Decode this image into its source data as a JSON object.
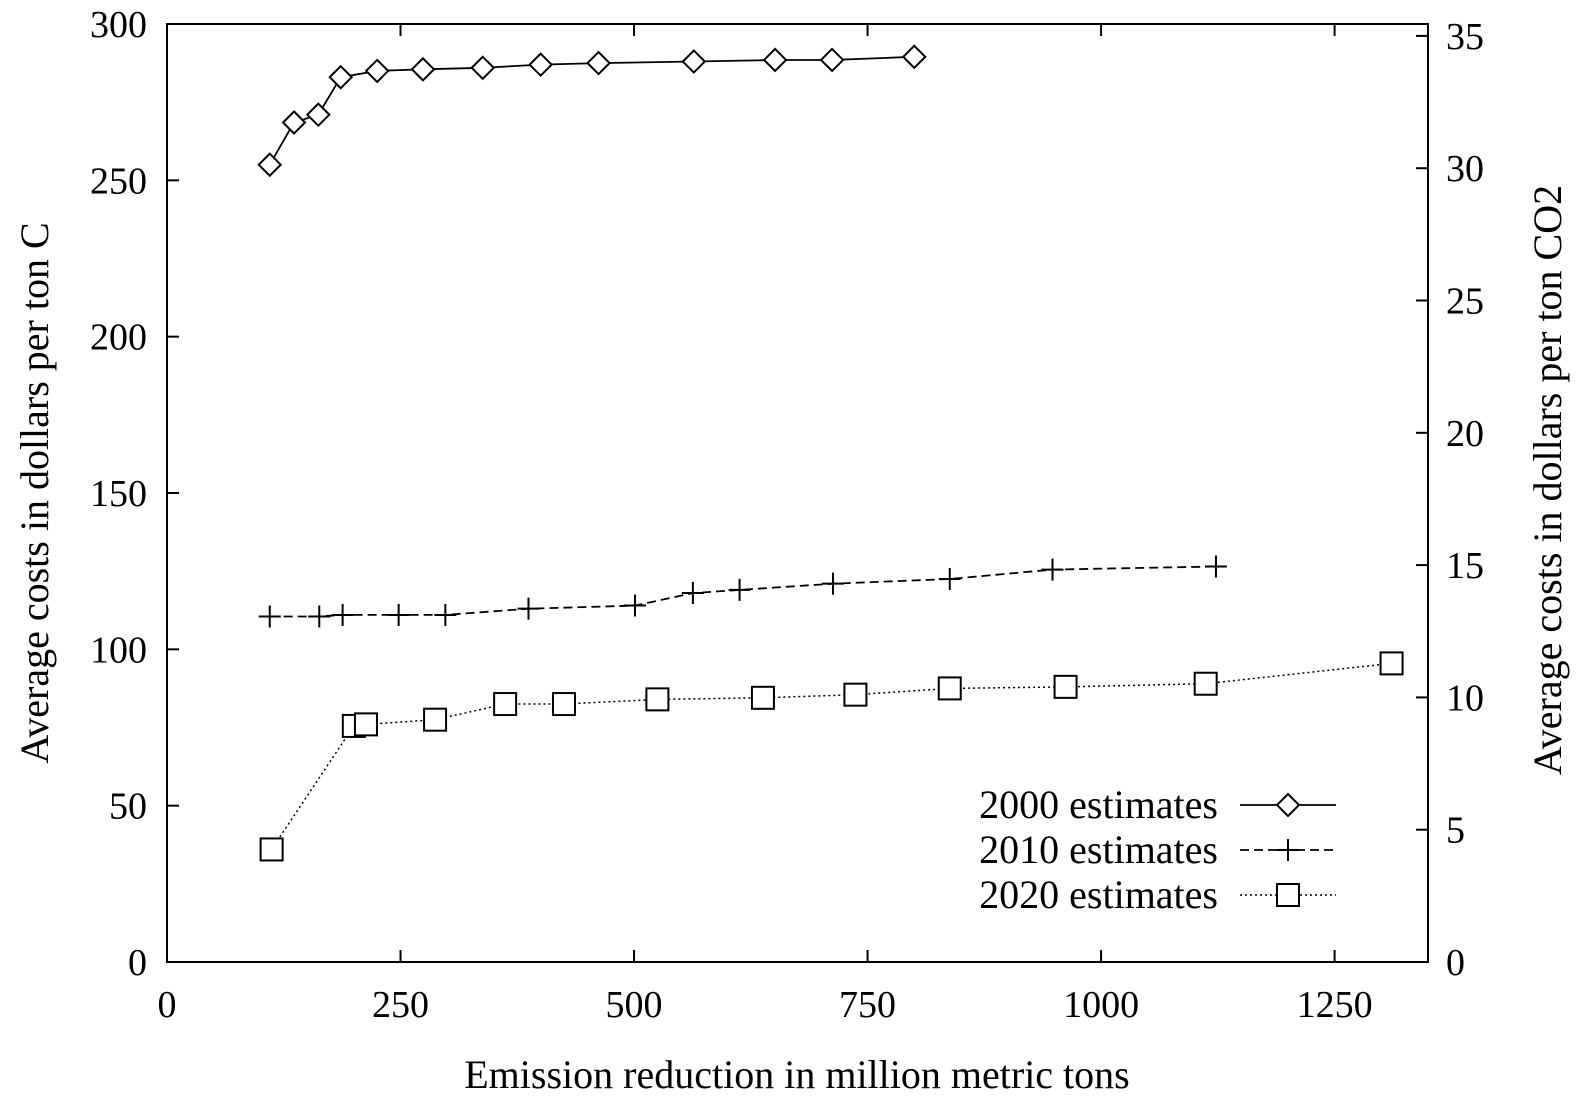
{
  "chart_data": {
    "type": "line",
    "title": "",
    "xlabel": "Emission reduction in million metric tons",
    "ylabel": "Average costs in dollars per ton C",
    "y2label": "Average costs in dollars per ton CO2",
    "xlim": [
      0,
      1350
    ],
    "ylim": [
      0,
      300
    ],
    "y2lim": [
      0,
      35.45
    ],
    "xticks": [
      0,
      250,
      500,
      750,
      1000,
      1250
    ],
    "yticks": [
      0,
      50,
      100,
      150,
      200,
      250,
      300
    ],
    "y2ticks": [
      0,
      5,
      10,
      15,
      20,
      25,
      30,
      35
    ],
    "grid": false,
    "legend_position": "bottom-right",
    "series": [
      {
        "name": "2000 estimates",
        "line_style": "solid",
        "marker": "diamond",
        "points": [
          [
            110,
            255
          ],
          [
            136,
            268.5
          ],
          [
            162,
            271
          ],
          [
            186,
            283
          ],
          [
            225,
            285
          ],
          [
            274,
            285.5
          ],
          [
            338,
            286
          ],
          [
            400,
            287
          ],
          [
            462,
            287.5
          ],
          [
            564,
            288
          ],
          [
            651,
            288.5
          ],
          [
            712,
            288.5
          ],
          [
            800,
            289.5
          ]
        ]
      },
      {
        "name": "2010 estimates",
        "line_style": "dashed",
        "marker": "plus",
        "points": [
          [
            110,
            110.5
          ],
          [
            163,
            110.5
          ],
          [
            188,
            111
          ],
          [
            248,
            111
          ],
          [
            298,
            111
          ],
          [
            387,
            113
          ],
          [
            501,
            114
          ],
          [
            563,
            118
          ],
          [
            613,
            119
          ],
          [
            713,
            121
          ],
          [
            838,
            122.5
          ],
          [
            948,
            125.5
          ],
          [
            1123,
            126.5
          ]
        ]
      },
      {
        "name": "2020 estimates",
        "line_style": "dotted",
        "marker": "square",
        "points": [
          [
            112,
            36
          ],
          [
            200,
            75.5
          ],
          [
            213,
            76
          ],
          [
            287,
            77.5
          ],
          [
            362,
            82.5
          ],
          [
            425,
            82.5
          ],
          [
            525,
            84
          ],
          [
            638,
            84.5
          ],
          [
            737,
            85.5
          ],
          [
            838,
            87.5
          ],
          [
            962,
            88
          ],
          [
            1112,
            89
          ],
          [
            1311,
            95.5
          ]
        ]
      }
    ]
  }
}
